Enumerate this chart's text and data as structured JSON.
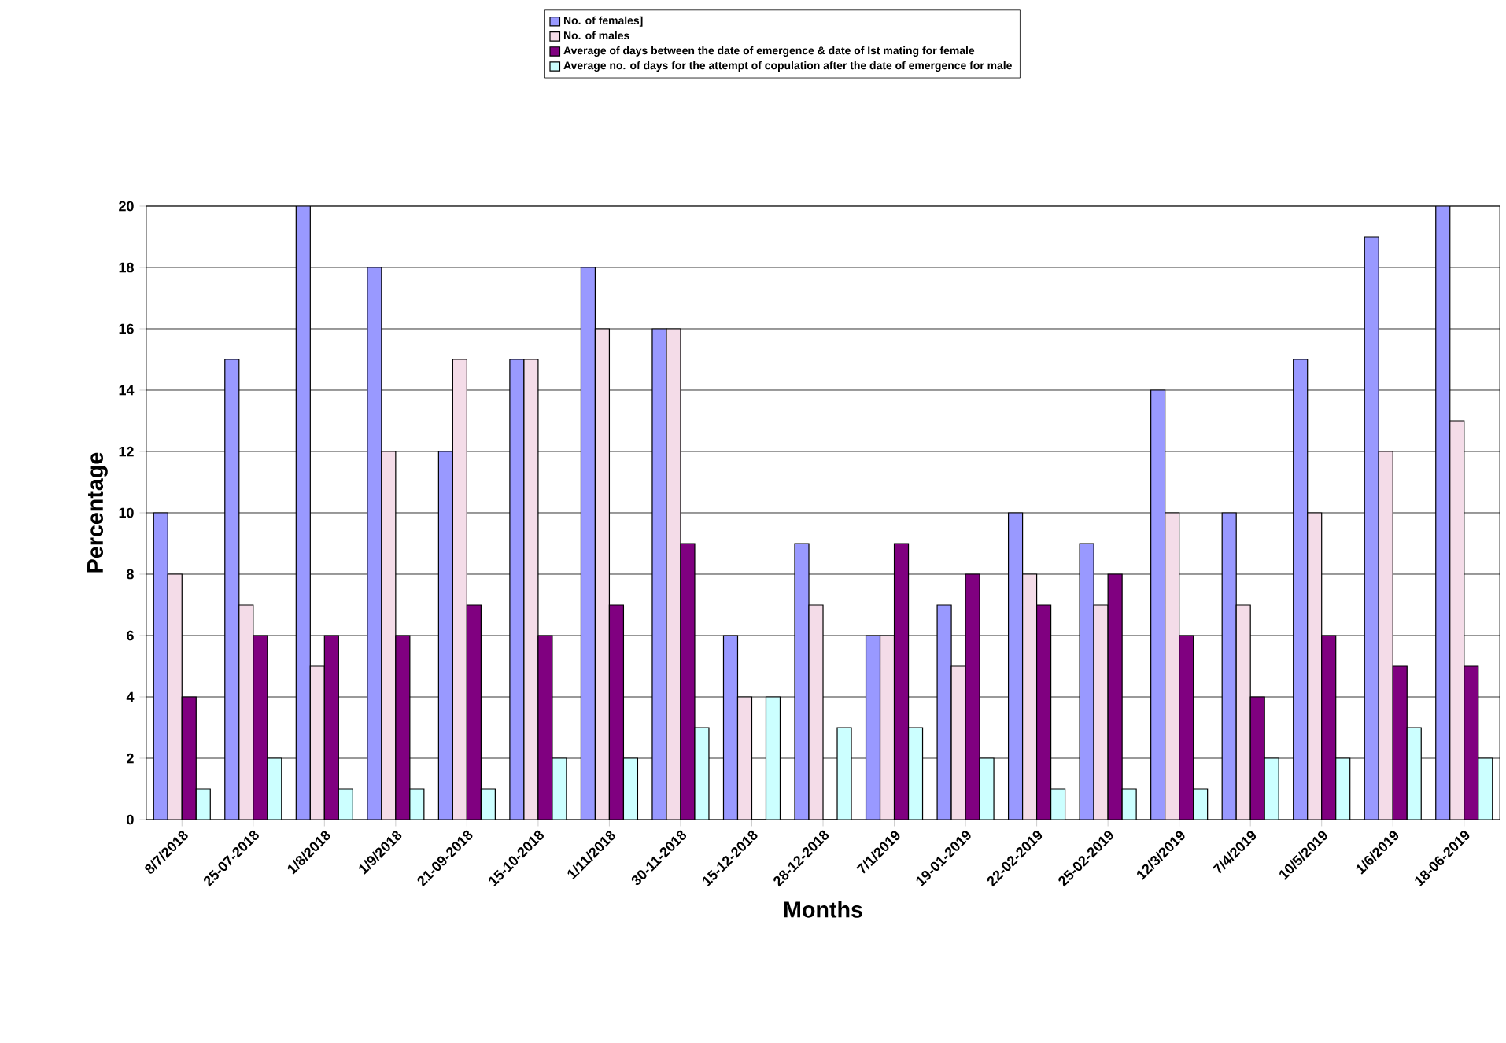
{
  "chart_data": {
    "type": "bar",
    "xlabel": "Months",
    "ylabel": "Percentage",
    "categories": [
      "8/7/2018",
      "25-07-2018",
      "1/8/2018",
      "1/9/2018",
      "21-09-2018",
      "15-10-2018",
      "1/11/2018",
      "30-11-2018",
      "15-12-2018",
      "28-12-2018",
      "7/1/2019",
      "19-01-2019",
      "22-02-2019",
      "25-02-2019",
      "12/3/2019",
      "7/4/2019",
      "10/5/2019",
      "1/6/2019",
      "18-06-2019"
    ],
    "series": [
      {
        "name": "No. of females]",
        "color": "#9999ff",
        "values": [
          10,
          15,
          20,
          18,
          12,
          15,
          18,
          16,
          6,
          9,
          6,
          7,
          10,
          9,
          14,
          10,
          15,
          19,
          20
        ]
      },
      {
        "name": "No. of males",
        "color": "#f4dce8",
        "values": [
          8,
          7,
          5,
          12,
          15,
          15,
          16,
          16,
          4,
          7,
          6,
          5,
          8,
          7,
          10,
          7,
          10,
          12,
          13
        ]
      },
      {
        "name": "Average of days between the date of emergence & date of Ist mating for female",
        "color": "#800080",
        "values": [
          4,
          6,
          6,
          6,
          7,
          6,
          7,
          9,
          0,
          0,
          9,
          8,
          7,
          8,
          6,
          4,
          6,
          5,
          5
        ]
      },
      {
        "name": "Average no. of days for the attempt of copulation after the date of emergence for male",
        "color": "#ccffff",
        "values": [
          1,
          2,
          1,
          1,
          1,
          2,
          2,
          3,
          4,
          3,
          3,
          2,
          1,
          1,
          1,
          2,
          2,
          3,
          2
        ]
      }
    ],
    "ylim": [
      0,
      20
    ],
    "yticks": [
      0,
      2,
      4,
      6,
      8,
      10,
      12,
      14,
      16,
      18,
      20
    ],
    "grid": "y",
    "legend": "top"
  }
}
